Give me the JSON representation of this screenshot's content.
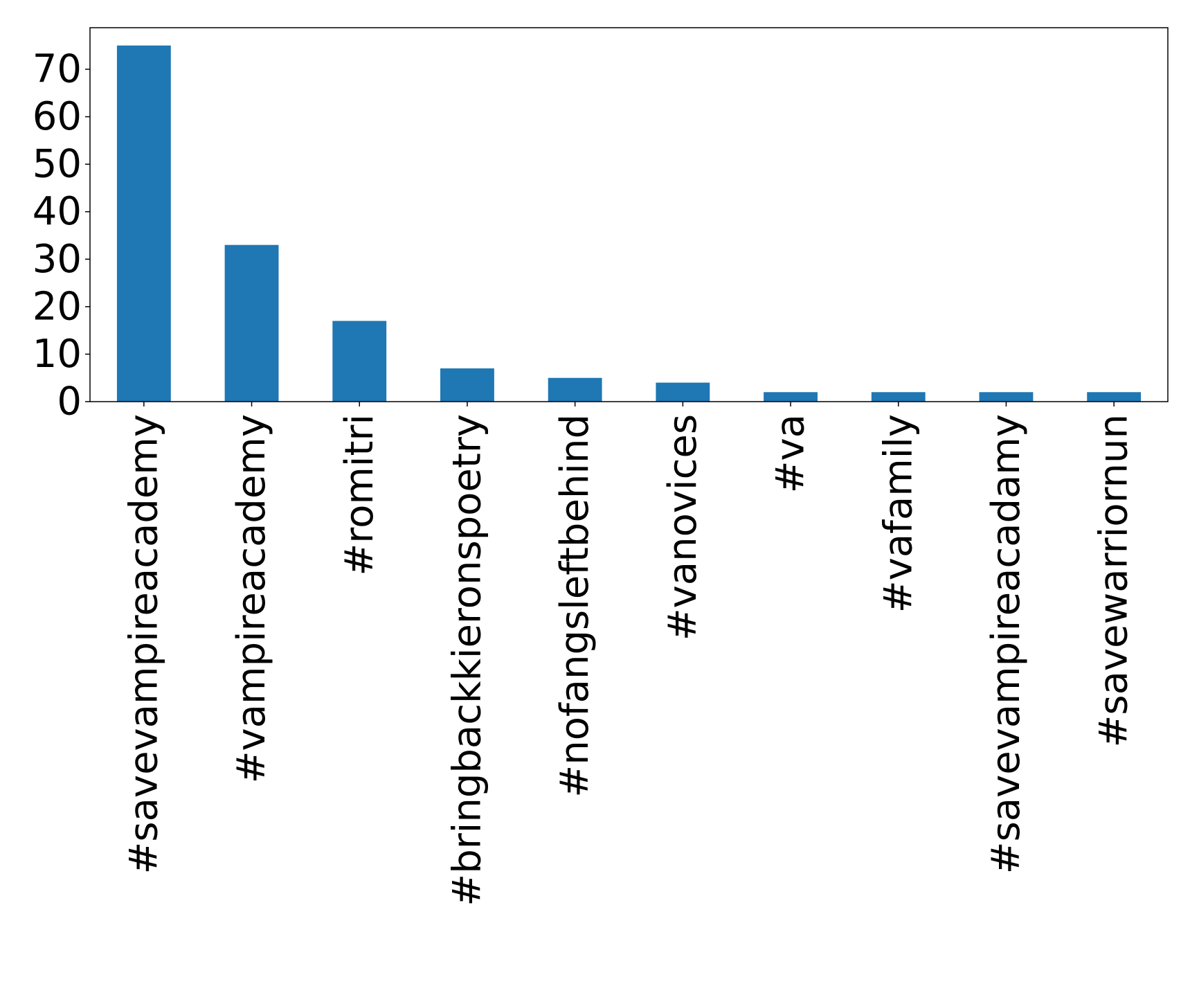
{
  "chart_data": {
    "type": "bar",
    "title": "",
    "xlabel": "",
    "ylabel": "",
    "categories": [
      "#savevampireacademy",
      "#vampireacademy",
      "#romitri",
      "#bringbackkieronspoetry",
      "#nofangsleftbehind",
      "#vanovices",
      "#va",
      "#vafamily",
      "#savevampireacadamy",
      "#savewarriornun"
    ],
    "values": [
      75,
      33,
      17,
      7,
      5,
      4,
      2,
      2,
      2,
      2
    ],
    "ylim": [
      0,
      78.75
    ],
    "yticks": [
      0,
      10,
      20,
      30,
      40,
      50,
      60,
      70
    ],
    "grid": false,
    "legend": "none",
    "bar_color": "#1f77b4",
    "axis_color": "#000000"
  }
}
